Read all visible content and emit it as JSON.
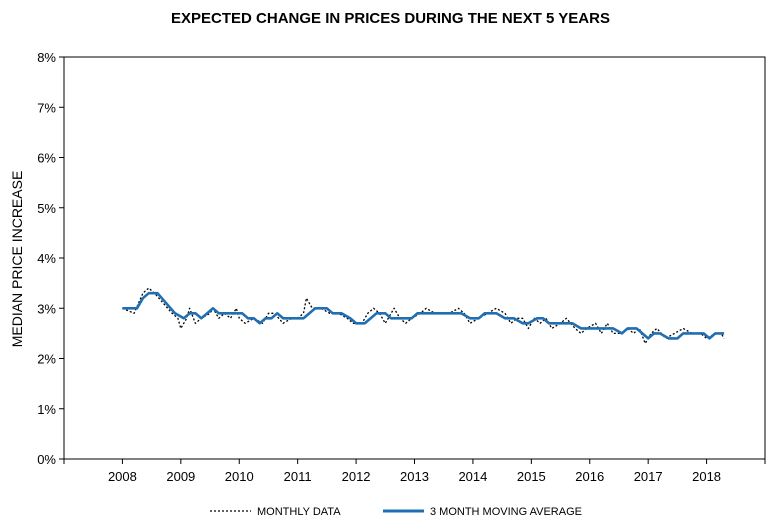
{
  "chart_data": {
    "type": "line",
    "title": "EXPECTED CHANGE IN PRICES DURING THE NEXT 5 YEARS",
    "xlabel": "",
    "ylabel": "MEDIAN PRICE INCREASE",
    "xlim": [
      2007,
      2019
    ],
    "ylim": [
      0,
      8
    ],
    "x_ticks": [
      "2008",
      "2009",
      "2010",
      "2011",
      "2012",
      "2013",
      "2014",
      "2015",
      "2016",
      "2017",
      "2018"
    ],
    "y_ticks": [
      "0%",
      "1%",
      "2%",
      "3%",
      "4%",
      "5%",
      "6%",
      "7%",
      "8%"
    ],
    "grid": false,
    "legend_position": "bottom",
    "series": [
      {
        "name": "MONTHLY DATA",
        "color": "#000000",
        "style": "dotted",
        "points": [
          [
            2008.0,
            3.0
          ],
          [
            2008.2,
            2.9
          ],
          [
            2008.35,
            3.3
          ],
          [
            2008.45,
            3.4
          ],
          [
            2008.55,
            3.3
          ],
          [
            2008.7,
            3.1
          ],
          [
            2008.85,
            2.9
          ],
          [
            2008.95,
            2.8
          ],
          [
            2009.0,
            2.6
          ],
          [
            2009.1,
            2.8
          ],
          [
            2009.15,
            3.0
          ],
          [
            2009.25,
            2.7
          ],
          [
            2009.35,
            2.8
          ],
          [
            2009.5,
            2.9
          ],
          [
            2009.55,
            3.0
          ],
          [
            2009.65,
            2.8
          ],
          [
            2009.75,
            2.9
          ],
          [
            2009.85,
            2.8
          ],
          [
            2009.95,
            3.0
          ],
          [
            2010.0,
            2.8
          ],
          [
            2010.1,
            2.7
          ],
          [
            2010.25,
            2.8
          ],
          [
            2010.4,
            2.7
          ],
          [
            2010.5,
            2.9
          ],
          [
            2010.6,
            2.9
          ],
          [
            2010.75,
            2.7
          ],
          [
            2010.9,
            2.8
          ],
          [
            2011.0,
            2.8
          ],
          [
            2011.1,
            2.9
          ],
          [
            2011.15,
            3.2
          ],
          [
            2011.25,
            3.0
          ],
          [
            2011.4,
            3.0
          ],
          [
            2011.55,
            2.9
          ],
          [
            2011.7,
            2.9
          ],
          [
            2011.85,
            2.8
          ],
          [
            2011.95,
            2.7
          ],
          [
            2012.1,
            2.7
          ],
          [
            2012.2,
            2.9
          ],
          [
            2012.3,
            3.0
          ],
          [
            2012.4,
            2.9
          ],
          [
            2012.5,
            2.7
          ],
          [
            2012.65,
            3.0
          ],
          [
            2012.75,
            2.8
          ],
          [
            2012.85,
            2.7
          ],
          [
            2012.95,
            2.8
          ],
          [
            2013.1,
            2.9
          ],
          [
            2013.2,
            3.0
          ],
          [
            2013.35,
            2.9
          ],
          [
            2013.5,
            2.9
          ],
          [
            2013.6,
            2.9
          ],
          [
            2013.75,
            3.0
          ],
          [
            2013.85,
            2.9
          ],
          [
            2013.95,
            2.7
          ],
          [
            2014.1,
            2.8
          ],
          [
            2014.25,
            2.9
          ],
          [
            2014.4,
            3.0
          ],
          [
            2014.55,
            2.9
          ],
          [
            2014.65,
            2.7
          ],
          [
            2014.75,
            2.8
          ],
          [
            2014.85,
            2.8
          ],
          [
            2014.95,
            2.6
          ],
          [
            2015.05,
            2.8
          ],
          [
            2015.15,
            2.7
          ],
          [
            2015.25,
            2.8
          ],
          [
            2015.35,
            2.6
          ],
          [
            2015.5,
            2.7
          ],
          [
            2015.6,
            2.8
          ],
          [
            2015.75,
            2.6
          ],
          [
            2015.85,
            2.5
          ],
          [
            2015.95,
            2.6
          ],
          [
            2016.1,
            2.7
          ],
          [
            2016.2,
            2.5
          ],
          [
            2016.3,
            2.7
          ],
          [
            2016.4,
            2.5
          ],
          [
            2016.55,
            2.5
          ],
          [
            2016.65,
            2.6
          ],
          [
            2016.75,
            2.5
          ],
          [
            2016.85,
            2.6
          ],
          [
            2016.95,
            2.3
          ],
          [
            2017.05,
            2.5
          ],
          [
            2017.15,
            2.6
          ],
          [
            2017.3,
            2.4
          ],
          [
            2017.45,
            2.5
          ],
          [
            2017.6,
            2.6
          ],
          [
            2017.75,
            2.5
          ],
          [
            2017.9,
            2.5
          ],
          [
            2018.0,
            2.4
          ],
          [
            2018.15,
            2.5
          ],
          [
            2018.25,
            2.5
          ],
          [
            2018.3,
            2.4
          ]
        ]
      },
      {
        "name": "3 MONTH MOVING AVERAGE",
        "color": "#1f6fb2",
        "style": "solid",
        "points": [
          [
            2008.0,
            3.0
          ],
          [
            2008.25,
            3.0
          ],
          [
            2008.35,
            3.2
          ],
          [
            2008.45,
            3.3
          ],
          [
            2008.6,
            3.3
          ],
          [
            2008.75,
            3.1
          ],
          [
            2008.9,
            2.9
          ],
          [
            2009.05,
            2.8
          ],
          [
            2009.15,
            2.9
          ],
          [
            2009.25,
            2.9
          ],
          [
            2009.35,
            2.8
          ],
          [
            2009.45,
            2.9
          ],
          [
            2009.55,
            3.0
          ],
          [
            2009.65,
            2.9
          ],
          [
            2009.75,
            2.9
          ],
          [
            2009.85,
            2.9
          ],
          [
            2009.95,
            2.9
          ],
          [
            2010.05,
            2.9
          ],
          [
            2010.15,
            2.8
          ],
          [
            2010.25,
            2.8
          ],
          [
            2010.35,
            2.7
          ],
          [
            2010.45,
            2.8
          ],
          [
            2010.55,
            2.8
          ],
          [
            2010.65,
            2.9
          ],
          [
            2010.75,
            2.8
          ],
          [
            2010.9,
            2.8
          ],
          [
            2011.0,
            2.8
          ],
          [
            2011.1,
            2.8
          ],
          [
            2011.2,
            2.9
          ],
          [
            2011.3,
            3.0
          ],
          [
            2011.4,
            3.0
          ],
          [
            2011.5,
            3.0
          ],
          [
            2011.6,
            2.9
          ],
          [
            2011.75,
            2.9
          ],
          [
            2011.9,
            2.8
          ],
          [
            2012.0,
            2.7
          ],
          [
            2012.15,
            2.7
          ],
          [
            2012.25,
            2.8
          ],
          [
            2012.35,
            2.9
          ],
          [
            2012.5,
            2.9
          ],
          [
            2012.6,
            2.8
          ],
          [
            2012.7,
            2.8
          ],
          [
            2012.8,
            2.8
          ],
          [
            2012.95,
            2.8
          ],
          [
            2013.05,
            2.9
          ],
          [
            2013.2,
            2.9
          ],
          [
            2013.4,
            2.9
          ],
          [
            2013.6,
            2.9
          ],
          [
            2013.8,
            2.9
          ],
          [
            2013.95,
            2.8
          ],
          [
            2014.1,
            2.8
          ],
          [
            2014.2,
            2.9
          ],
          [
            2014.4,
            2.9
          ],
          [
            2014.55,
            2.8
          ],
          [
            2014.7,
            2.8
          ],
          [
            2014.85,
            2.7
          ],
          [
            2014.95,
            2.7
          ],
          [
            2015.1,
            2.8
          ],
          [
            2015.2,
            2.8
          ],
          [
            2015.3,
            2.7
          ],
          [
            2015.45,
            2.7
          ],
          [
            2015.55,
            2.7
          ],
          [
            2015.7,
            2.7
          ],
          [
            2015.85,
            2.6
          ],
          [
            2015.95,
            2.6
          ],
          [
            2016.1,
            2.6
          ],
          [
            2016.25,
            2.6
          ],
          [
            2016.4,
            2.6
          ],
          [
            2016.55,
            2.5
          ],
          [
            2016.65,
            2.6
          ],
          [
            2016.8,
            2.6
          ],
          [
            2016.9,
            2.5
          ],
          [
            2017.0,
            2.4
          ],
          [
            2017.1,
            2.5
          ],
          [
            2017.2,
            2.5
          ],
          [
            2017.35,
            2.4
          ],
          [
            2017.5,
            2.4
          ],
          [
            2017.6,
            2.5
          ],
          [
            2017.75,
            2.5
          ],
          [
            2017.95,
            2.5
          ],
          [
            2018.05,
            2.4
          ],
          [
            2018.15,
            2.5
          ],
          [
            2018.3,
            2.5
          ]
        ]
      }
    ]
  }
}
